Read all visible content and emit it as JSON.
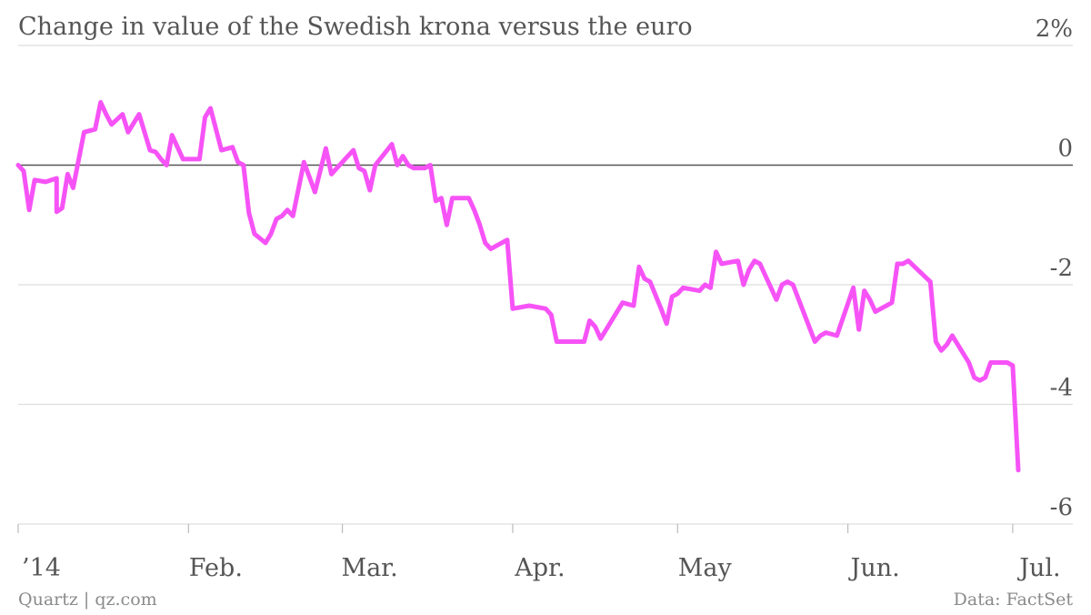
{
  "title": "Change in value of the Swedish krona versus the euro",
  "source_left": "Quartz | qz.com",
  "source_right": "Data: FactSet",
  "colors": {
    "line": "#f653f6",
    "zero": "#555555",
    "grid": "#dddddd",
    "text": "#555555",
    "muted": "#8a8a8a"
  },
  "chart_data": {
    "type": "line",
    "title": "Change in value of the Swedish krona versus the euro",
    "xlabel": "",
    "ylabel": "",
    "ylim": [
      -6,
      2
    ],
    "y_ticks": [
      {
        "value": 2,
        "label": "2%"
      },
      {
        "value": 0,
        "label": "0"
      },
      {
        "value": -2,
        "label": "-2"
      },
      {
        "value": -4,
        "label": "-4"
      },
      {
        "value": -6,
        "label": "-6"
      }
    ],
    "x_range": [
      "2014-01-01",
      "2014-07-04"
    ],
    "x_ticks": [
      {
        "date": "2014-01-01",
        "label": "’14"
      },
      {
        "date": "2014-02-01",
        "label": "Feb."
      },
      {
        "date": "2014-03-01",
        "label": "Mar."
      },
      {
        "date": "2014-04-01",
        "label": "Apr."
      },
      {
        "date": "2014-05-01",
        "label": "May"
      },
      {
        "date": "2014-06-01",
        "label": "Jun."
      },
      {
        "date": "2014-07-01",
        "label": "Jul."
      }
    ],
    "grid": true,
    "series": [
      {
        "x": [
          "2014-01-01",
          "2014-01-02",
          "2014-01-03",
          "2014-01-04",
          "2014-01-06",
          "2014-01-08",
          "2014-01-08",
          "2014-01-09",
          "2014-01-10",
          "2014-01-11",
          "2014-01-13",
          "2014-01-15",
          "2014-01-16",
          "2014-01-17",
          "2014-01-18",
          "2014-01-20",
          "2014-01-21",
          "2014-01-23",
          "2014-01-25",
          "2014-01-26",
          "2014-01-27",
          "2014-01-28",
          "2014-01-29",
          "2014-01-31",
          "2014-02-02",
          "2014-02-03",
          "2014-02-04",
          "2014-02-05",
          "2014-02-07",
          "2014-02-09",
          "2014-02-10",
          "2014-02-11",
          "2014-02-12",
          "2014-02-13",
          "2014-02-15",
          "2014-02-16",
          "2014-02-17",
          "2014-02-18",
          "2014-02-19",
          "2014-02-20",
          "2014-02-22",
          "2014-02-24",
          "2014-02-26",
          "2014-02-27",
          "2014-02-28",
          "2014-03-02",
          "2014-03-03",
          "2014-03-04",
          "2014-03-05",
          "2014-03-06",
          "2014-03-07",
          "2014-03-10",
          "2014-03-11",
          "2014-03-12",
          "2014-03-13",
          "2014-03-14",
          "2014-03-16",
          "2014-03-17",
          "2014-03-18",
          "2014-03-19",
          "2014-03-20",
          "2014-03-21",
          "2014-03-24",
          "2014-03-25",
          "2014-03-26",
          "2014-03-27",
          "2014-03-28",
          "2014-03-31",
          "2014-04-01",
          "2014-04-04",
          "2014-04-07",
          "2014-04-08",
          "2014-04-09",
          "2014-04-10",
          "2014-04-14",
          "2014-04-15",
          "2014-04-16",
          "2014-04-17",
          "2014-04-18",
          "2014-04-21",
          "2014-04-23",
          "2014-04-24",
          "2014-04-25",
          "2014-04-26",
          "2014-04-28",
          "2014-04-29",
          "2014-04-30",
          "2014-05-01",
          "2014-05-02",
          "2014-05-05",
          "2014-05-06",
          "2014-05-07",
          "2014-05-08",
          "2014-05-09",
          "2014-05-12",
          "2014-05-13",
          "2014-05-14",
          "2014-05-15",
          "2014-05-16",
          "2014-05-19",
          "2014-05-20",
          "2014-05-21",
          "2014-05-22",
          "2014-05-26",
          "2014-05-27",
          "2014-05-28",
          "2014-05-30",
          "2014-06-02",
          "2014-06-03",
          "2014-06-04",
          "2014-06-05",
          "2014-06-06",
          "2014-06-09",
          "2014-06-10",
          "2014-06-11",
          "2014-06-12",
          "2014-06-16",
          "2014-06-17",
          "2014-06-18",
          "2014-06-19",
          "2014-06-20",
          "2014-06-23",
          "2014-06-24",
          "2014-06-25",
          "2014-06-26",
          "2014-06-27",
          "2014-06-30",
          "2014-07-01",
          "2014-07-02"
        ],
        "y": [
          0.0,
          -0.1,
          -0.75,
          -0.25,
          -0.28,
          -0.22,
          -0.78,
          -0.72,
          -0.15,
          -0.38,
          0.55,
          0.6,
          1.05,
          0.85,
          0.68,
          0.85,
          0.55,
          0.85,
          0.25,
          0.22,
          0.1,
          0.0,
          0.5,
          0.1,
          0.1,
          0.1,
          0.8,
          0.95,
          0.25,
          0.3,
          0.05,
          0.0,
          -0.8,
          -1.15,
          -1.3,
          -1.15,
          -0.9,
          -0.85,
          -0.75,
          -0.85,
          0.05,
          -0.45,
          0.28,
          -0.15,
          -0.05,
          0.15,
          0.25,
          -0.05,
          -0.1,
          -0.42,
          0.0,
          0.35,
          0.0,
          0.15,
          0.0,
          -0.05,
          -0.05,
          0.0,
          -0.6,
          -0.55,
          -1.0,
          -0.55,
          -0.55,
          -0.75,
          -1.0,
          -1.3,
          -1.4,
          -1.25,
          -2.4,
          -2.35,
          -2.4,
          -2.5,
          -2.95,
          -2.95,
          -2.95,
          -2.6,
          -2.7,
          -2.9,
          -2.75,
          -2.3,
          -2.35,
          -1.7,
          -1.9,
          -1.95,
          -2.4,
          -2.65,
          -2.2,
          -2.15,
          -2.05,
          -2.1,
          -2.0,
          -2.05,
          -1.45,
          -1.65,
          -1.6,
          -2.0,
          -1.75,
          -1.6,
          -1.65,
          -2.25,
          -2.0,
          -1.95,
          -2.0,
          -2.95,
          -2.85,
          -2.8,
          -2.85,
          -2.05,
          -2.75,
          -2.1,
          -2.25,
          -2.45,
          -2.3,
          -1.65,
          -1.65,
          -1.6,
          -1.95,
          -2.95,
          -3.1,
          -3.0,
          -2.85,
          -3.3,
          -3.55,
          -3.6,
          -3.55,
          -3.3,
          -3.3,
          -3.35,
          -5.1
        ]
      }
    ]
  }
}
